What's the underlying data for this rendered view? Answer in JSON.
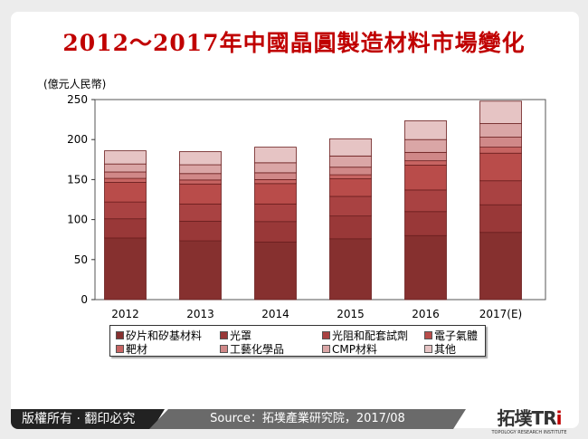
{
  "title": "2012～2017年中國晶圓製造材料市場變化",
  "chart_data": {
    "type": "bar",
    "stacked": true,
    "title": "2012～2017年中國晶圓製造材料市場變化",
    "ylabel": "(億元人民幣)",
    "ylim": [
      0,
      250
    ],
    "yticks": [
      0,
      50,
      100,
      150,
      200,
      250
    ],
    "grid": false,
    "legend_position": "bottom",
    "categories": [
      "2012",
      "2013",
      "2014",
      "2015",
      "2016",
      "2017(E)"
    ],
    "series": [
      {
        "name": "矽片和矽基材料",
        "color": "#86302f",
        "values": [
          77,
          73.5,
          72,
          76,
          80,
          84
        ]
      },
      {
        "name": "光罩",
        "color": "#993838",
        "values": [
          24,
          24.5,
          25.5,
          28.5,
          30,
          34.5
        ]
      },
      {
        "name": "光阻和配套試劑",
        "color": "#a94242",
        "values": [
          21,
          21.5,
          22,
          24.5,
          27,
          30
        ]
      },
      {
        "name": "電子氣體",
        "color": "#b94c4a",
        "values": [
          24.5,
          25,
          25.5,
          22,
          31,
          34.5
        ]
      },
      {
        "name": "靶材",
        "color": "#c76462",
        "values": [
          5,
          5,
          5,
          5,
          5.5,
          7.5
        ]
      },
      {
        "name": "工藝化學品",
        "color": "#d08888",
        "values": [
          8,
          8,
          8.5,
          9.5,
          10.5,
          12.5
        ]
      },
      {
        "name": "CMP材料",
        "color": "#daa6a6",
        "values": [
          10,
          11,
          12.5,
          14,
          16,
          17
        ]
      },
      {
        "name": "其他",
        "color": "#e6c4c4",
        "values": [
          16.5,
          16.5,
          19.5,
          21.5,
          23.5,
          28
        ]
      }
    ]
  },
  "footer": {
    "copyright": "版權所有 · 翻印必究",
    "source": "Source：拓墣產業研究院，2017/08",
    "logo": "拓墣TRi",
    "logo_sub": "TOPOLOGY RESEARCH INSTITUTE"
  }
}
